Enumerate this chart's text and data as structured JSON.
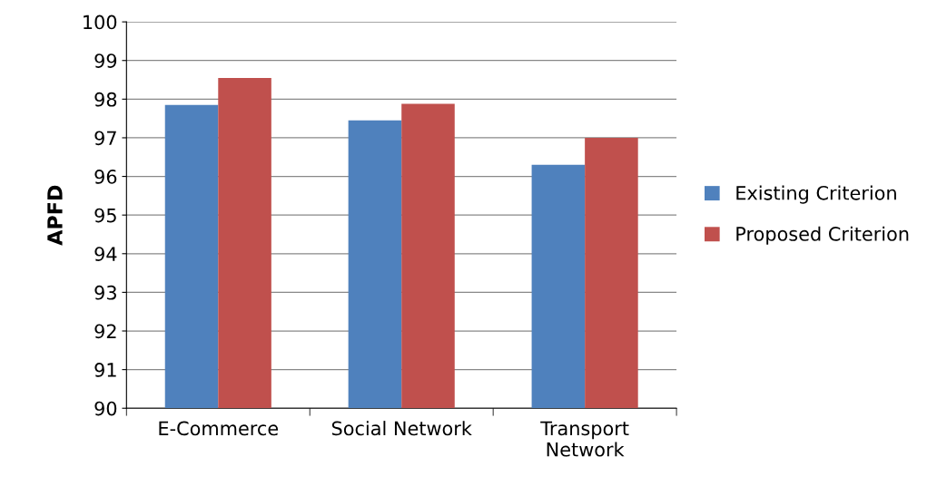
{
  "chart_data": {
    "type": "bar",
    "ylabel": "APFD",
    "categories": [
      "E-Commerce",
      "Social Network",
      "Transport\nNetwork"
    ],
    "series": [
      {
        "name": "Existing Criterion",
        "color": "#4f81bd",
        "values": [
          97.85,
          97.45,
          96.3
        ]
      },
      {
        "name": "Proposed Criterion",
        "color": "#c0504d",
        "values": [
          98.55,
          97.88,
          97.0
        ]
      }
    ],
    "ylim": [
      90,
      100
    ],
    "yticks": [
      90,
      91,
      92,
      93,
      94,
      95,
      96,
      97,
      98,
      99,
      100
    ],
    "grid": "y",
    "legend": "right"
  }
}
